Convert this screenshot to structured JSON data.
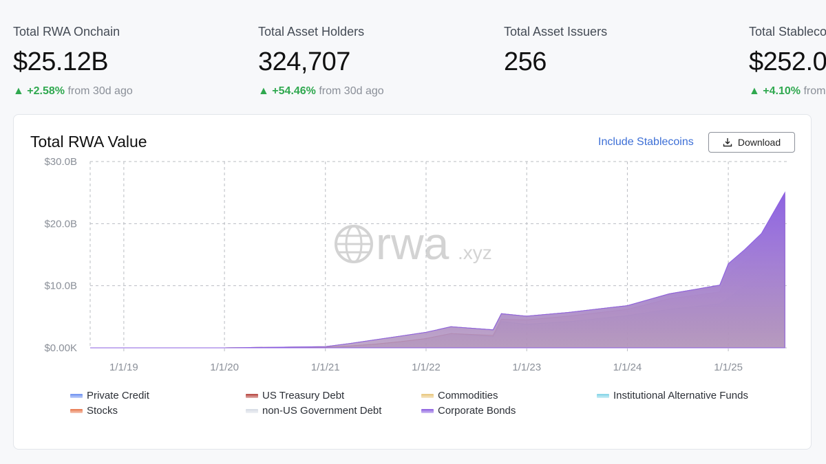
{
  "stats": [
    {
      "label": "Total RWA Onchain",
      "value": "$25.12B",
      "change": "+2.58%",
      "suffix": "from 30d ago"
    },
    {
      "label": "Total Asset Holders",
      "value": "324,707",
      "change": "+54.46%",
      "suffix": "from 30d ago"
    },
    {
      "label": "Total Asset Issuers",
      "value": "256",
      "change": "",
      "suffix": ""
    },
    {
      "label": "Total Stableco",
      "value": "$252.0",
      "change": "+4.10%",
      "suffix": "from"
    }
  ],
  "card": {
    "title": "Total RWA Value",
    "stable_link": "Include Stablecoins",
    "download_label": "Download",
    "watermark_main": "rwa",
    "watermark_suffix": ".xyz"
  },
  "colors": {
    "private_credit": "#6b8ff0",
    "us_treasury": "#b5413a",
    "commodities": "#e8c57a",
    "inst_alt_funds": "#7fd3e6",
    "stocks": "#e8764a",
    "non_us_gov": "#d5dbe4",
    "corporate_bonds": "#8a5ce0"
  },
  "chart_data": {
    "type": "area",
    "title": "Total RWA Value",
    "stacked": true,
    "x_ticks": [
      "1/1/19",
      "1/1/20",
      "1/1/21",
      "1/1/22",
      "1/1/23",
      "1/1/24",
      "1/1/25"
    ],
    "y_ticks": [
      "$0.00K",
      "$10.0B",
      "$20.0B",
      "$30.0B"
    ],
    "ylim": [
      0,
      30
    ],
    "y_unit": "B",
    "x_range": [
      "2018-09-01",
      "2025-08-01"
    ],
    "x": [
      "2018-09-01",
      "2019-01-01",
      "2020-01-01",
      "2021-01-01",
      "2021-04-01",
      "2021-07-01",
      "2021-10-01",
      "2022-01-01",
      "2022-04-01",
      "2022-09-01",
      "2022-10-01",
      "2023-01-01",
      "2023-06-01",
      "2024-01-01",
      "2024-06-01",
      "2024-12-01",
      "2025-01-01",
      "2025-03-01",
      "2025-05-01",
      "2025-07-25"
    ],
    "series": [
      {
        "name": "Private Credit",
        "values": [
          0,
          0,
          0,
          0.1,
          0.3,
          0.6,
          1.0,
          1.5,
          2.3,
          1.8,
          4.2,
          3.8,
          4.2,
          5.2,
          6.2,
          7.1,
          8.0,
          10.0,
          11.3,
          14.5
        ]
      },
      {
        "name": "US Treasury Debt",
        "values": [
          0,
          0,
          0,
          0,
          0,
          0,
          0,
          0,
          0,
          0.2,
          0.4,
          0.7,
          0.9,
          1.0,
          1.7,
          1.9,
          3.9,
          3.8,
          4.9,
          7.5
        ]
      },
      {
        "name": "Commodities",
        "values": [
          0,
          0,
          0,
          0.1,
          0.4,
          0.7,
          0.9,
          1.0,
          1.1,
          0.9,
          0.9,
          0.6,
          0.6,
          0.6,
          0.7,
          0.9,
          1.0,
          1.2,
          1.2,
          1.6
        ]
      },
      {
        "name": "Institutional Alternative Funds",
        "values": [
          0,
          0,
          0,
          0,
          0,
          0,
          0,
          0,
          0,
          0,
          0,
          0,
          0,
          0,
          0.1,
          0.2,
          0.5,
          0.5,
          0.6,
          0.8
        ]
      },
      {
        "name": "Stocks",
        "values": [
          0,
          0,
          0,
          0,
          0,
          0,
          0,
          0,
          0,
          0,
          0,
          0,
          0,
          0,
          0,
          0,
          0.05,
          0.1,
          0.15,
          0.2
        ]
      },
      {
        "name": "non-US Government Debt",
        "values": [
          0,
          0,
          0,
          0,
          0,
          0,
          0,
          0,
          0,
          0,
          0,
          0,
          0,
          0,
          0,
          0,
          0.05,
          0.1,
          0.1,
          0.2
        ]
      },
      {
        "name": "Corporate Bonds",
        "values": [
          0,
          0,
          0,
          0,
          0,
          0,
          0,
          0,
          0,
          0,
          0,
          0,
          0,
          0,
          0,
          0,
          0.05,
          0.1,
          0.15,
          0.2
        ]
      }
    ]
  }
}
